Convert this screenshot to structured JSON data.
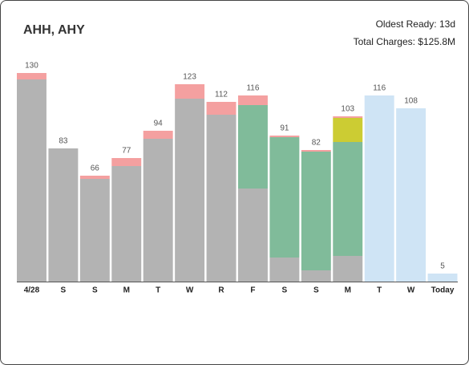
{
  "header": {
    "title": "AHH, AHY",
    "oldest_ready": "Oldest Ready: 13d",
    "total_charges": "Total Charges: $125.8M"
  },
  "chart_data": {
    "type": "stacked_bar",
    "categories": [
      "4/28",
      "S",
      "S",
      "M",
      "T",
      "W",
      "R",
      "F",
      "S",
      "S",
      "M",
      "T",
      "W",
      "Today"
    ],
    "totals": [
      130,
      83,
      66,
      77,
      94,
      123,
      112,
      116,
      91,
      82,
      103,
      116,
      108,
      5
    ],
    "ylim": [
      0,
      130
    ],
    "series": [
      {
        "color": "#b3b3b3",
        "values": [
          126,
          83,
          64,
          72,
          89,
          114,
          104,
          58,
          15,
          7,
          16,
          null,
          null,
          null
        ]
      },
      {
        "color": "#80bb9a",
        "values": [
          null,
          null,
          null,
          null,
          null,
          null,
          null,
          52,
          75,
          74,
          71,
          null,
          null,
          null
        ]
      },
      {
        "color": "#cccc33",
        "values": [
          null,
          null,
          null,
          null,
          null,
          null,
          null,
          null,
          null,
          null,
          15,
          null,
          null,
          null
        ]
      },
      {
        "color": "#f4a0a0",
        "values": [
          4,
          null,
          2,
          5,
          5,
          9,
          8,
          6,
          1,
          1,
          1,
          null,
          null,
          null
        ]
      },
      {
        "color": "#cfe4f5",
        "values": [
          null,
          null,
          null,
          null,
          null,
          null,
          null,
          null,
          null,
          null,
          null,
          116,
          108,
          5
        ]
      }
    ]
  }
}
